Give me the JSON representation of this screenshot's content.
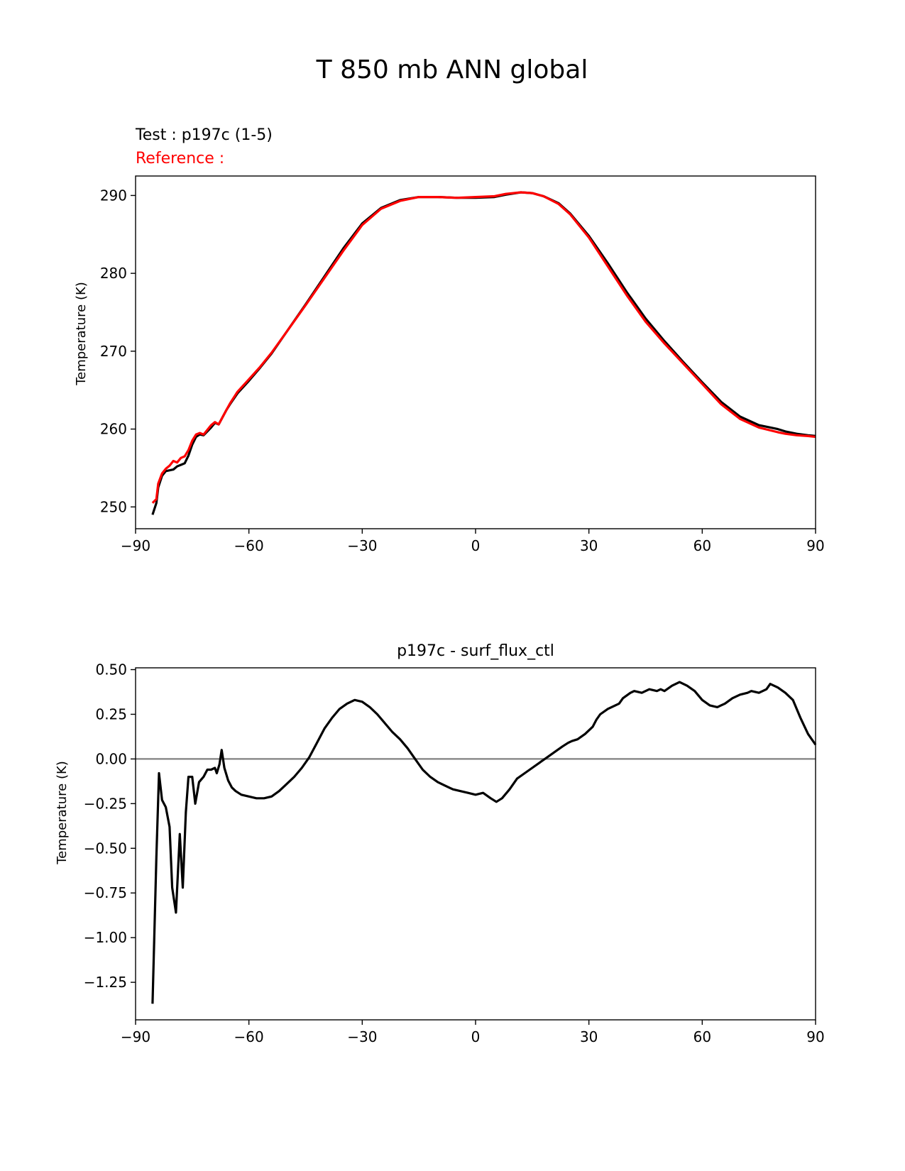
{
  "figure_title": "T 850 mb ANN global",
  "chart_data": [
    {
      "type": "line",
      "test_label": "Test : p197c (1-5)",
      "reference_label": "Reference :",
      "ylabel": "Temperature (K)",
      "xlim": [
        -90,
        90
      ],
      "ylim": [
        247.2,
        292.5
      ],
      "xticks": [
        -90,
        -60,
        -30,
        0,
        30,
        60,
        90
      ],
      "xtick_labels": [
        "−90",
        "−60",
        "−30",
        "0",
        "30",
        "60",
        "90"
      ],
      "yticks": [
        250,
        260,
        270,
        280,
        290
      ],
      "ytick_labels": [
        "250",
        "260",
        "270",
        "280",
        "290"
      ],
      "colors": {
        "test": "#000000",
        "reference": "#ff0000",
        "test_label": "#000000",
        "reference_label": "#ff0000"
      },
      "series": [
        {
          "key": "test",
          "x": [
            -85.5,
            -84.5,
            -84,
            -83,
            -82,
            -81,
            -80,
            -79,
            -78,
            -77,
            -76,
            -75,
            -74,
            -73,
            -72,
            -71,
            -70,
            -69,
            -68,
            -67,
            -66,
            -65,
            -63,
            -60,
            -57,
            -54,
            -50,
            -45,
            -40,
            -35,
            -30,
            -25,
            -20,
            -15,
            -10,
            -5,
            0,
            5,
            8,
            12,
            15,
            18,
            22,
            25,
            30,
            35,
            40,
            45,
            50,
            55,
            60,
            65,
            70,
            75,
            80,
            82,
            85,
            88,
            90
          ],
          "y": [
            249.0,
            250.5,
            252.5,
            254.0,
            254.6,
            254.7,
            254.8,
            255.2,
            255.4,
            255.6,
            256.6,
            258.0,
            259.0,
            259.3,
            259.2,
            259.7,
            260.2,
            260.8,
            260.6,
            261.5,
            262.4,
            263.2,
            264.6,
            266.2,
            267.9,
            269.7,
            272.5,
            276.0,
            279.6,
            283.2,
            286.4,
            288.4,
            289.4,
            289.8,
            289.8,
            289.7,
            289.7,
            289.8,
            290.1,
            290.4,
            290.3,
            289.9,
            289.0,
            287.7,
            284.8,
            281.3,
            277.6,
            274.2,
            271.3,
            268.6,
            266.0,
            263.5,
            261.6,
            260.5,
            260.0,
            259.7,
            259.4,
            259.2,
            259.1
          ]
        },
        {
          "key": "reference",
          "x": [
            -85.5,
            -84.5,
            -84,
            -83,
            -82,
            -81,
            -80,
            -79,
            -78,
            -77,
            -76,
            -75,
            -74,
            -73,
            -72,
            -71,
            -70,
            -69,
            -68,
            -67,
            -66,
            -65,
            -63,
            -60,
            -57,
            -54,
            -50,
            -45,
            -40,
            -35,
            -30,
            -25,
            -20,
            -15,
            -10,
            -5,
            0,
            5,
            8,
            12,
            15,
            18,
            22,
            25,
            30,
            35,
            40,
            45,
            50,
            55,
            60,
            65,
            70,
            75,
            80,
            82,
            85,
            88,
            90
          ],
          "y": [
            250.5,
            251.0,
            253.0,
            254.3,
            254.9,
            255.3,
            255.9,
            255.7,
            256.3,
            256.5,
            257.3,
            258.5,
            259.3,
            259.5,
            259.3,
            259.9,
            260.5,
            260.9,
            260.6,
            261.5,
            262.4,
            263.3,
            264.8,
            266.4,
            268.0,
            269.8,
            272.5,
            275.9,
            279.4,
            282.9,
            286.2,
            288.3,
            289.3,
            289.8,
            289.8,
            289.7,
            289.8,
            289.9,
            290.2,
            290.4,
            290.3,
            289.9,
            288.9,
            287.6,
            284.6,
            280.9,
            277.2,
            273.8,
            271.0,
            268.4,
            265.8,
            263.2,
            261.3,
            260.2,
            259.6,
            259.4,
            259.2,
            259.1,
            259.0
          ]
        }
      ]
    },
    {
      "type": "line",
      "title": "p197c - surf_flux_ctl",
      "ylabel": "Temperature (K)",
      "xlim": [
        -90,
        90
      ],
      "ylim": [
        -1.46,
        0.51
      ],
      "xticks": [
        -90,
        -60,
        -30,
        0,
        30,
        60,
        90
      ],
      "xtick_labels": [
        "−90",
        "−60",
        "−30",
        "0",
        "30",
        "60",
        "90"
      ],
      "yticks": [
        0.5,
        0.25,
        0.0,
        -0.25,
        -0.5,
        -0.75,
        -1.0,
        -1.25
      ],
      "ytick_labels": [
        "0.50",
        "0.25",
        "0.00",
        "−0.25",
        "−0.50",
        "−0.75",
        "−1.00",
        "−1.25"
      ],
      "zero_line": 0,
      "colors": {
        "diff": "#000000",
        "zero_line": "#808080"
      },
      "series": [
        {
          "key": "diff",
          "x": [
            -85.5,
            -84.5,
            -83.8,
            -83,
            -82,
            -81,
            -80.3,
            -79.3,
            -78.3,
            -77.5,
            -76.7,
            -76,
            -75,
            -74.2,
            -73.2,
            -72,
            -71,
            -70,
            -69,
            -68.5,
            -67.8,
            -67.2,
            -66.5,
            -65.5,
            -64.5,
            -63.5,
            -62,
            -60,
            -58,
            -56,
            -54,
            -52,
            -50,
            -48,
            -46,
            -44,
            -42,
            -40,
            -38,
            -36,
            -34,
            -32,
            -30,
            -28,
            -26,
            -24,
            -22,
            -20,
            -18,
            -16,
            -14,
            -12,
            -10,
            -8,
            -6,
            -4,
            -2,
            0,
            2,
            4,
            5.5,
            7,
            9,
            11,
            13,
            15,
            17,
            19,
            21,
            23,
            24.5,
            25.5,
            27,
            29,
            31,
            32,
            33,
            35,
            37,
            38,
            39,
            41,
            42,
            44,
            46,
            48,
            49,
            50,
            52,
            54,
            56,
            58,
            60,
            62,
            64,
            66,
            68,
            70,
            72,
            73,
            75,
            77,
            78,
            80,
            82,
            84,
            86,
            88,
            90
          ],
          "y": [
            -1.37,
            -0.55,
            -0.08,
            -0.23,
            -0.27,
            -0.38,
            -0.72,
            -0.86,
            -0.42,
            -0.72,
            -0.3,
            -0.1,
            -0.1,
            -0.25,
            -0.13,
            -0.1,
            -0.06,
            -0.06,
            -0.05,
            -0.08,
            -0.03,
            0.05,
            -0.05,
            -0.12,
            -0.16,
            -0.18,
            -0.2,
            -0.21,
            -0.22,
            -0.22,
            -0.21,
            -0.18,
            -0.14,
            -0.1,
            -0.05,
            0.01,
            0.09,
            0.17,
            0.23,
            0.28,
            0.31,
            0.33,
            0.32,
            0.29,
            0.25,
            0.2,
            0.15,
            0.11,
            0.06,
            0.0,
            -0.06,
            -0.1,
            -0.13,
            -0.15,
            -0.17,
            -0.18,
            -0.19,
            -0.2,
            -0.19,
            -0.22,
            -0.24,
            -0.22,
            -0.17,
            -0.11,
            -0.08,
            -0.05,
            -0.02,
            0.01,
            0.04,
            0.07,
            0.09,
            0.1,
            0.11,
            0.14,
            0.18,
            0.22,
            0.25,
            0.28,
            0.3,
            0.31,
            0.34,
            0.37,
            0.38,
            0.37,
            0.39,
            0.38,
            0.39,
            0.38,
            0.41,
            0.43,
            0.41,
            0.38,
            0.33,
            0.3,
            0.29,
            0.31,
            0.34,
            0.36,
            0.37,
            0.38,
            0.37,
            0.39,
            0.42,
            0.4,
            0.37,
            0.33,
            0.23,
            0.14,
            0.08
          ]
        }
      ]
    }
  ]
}
